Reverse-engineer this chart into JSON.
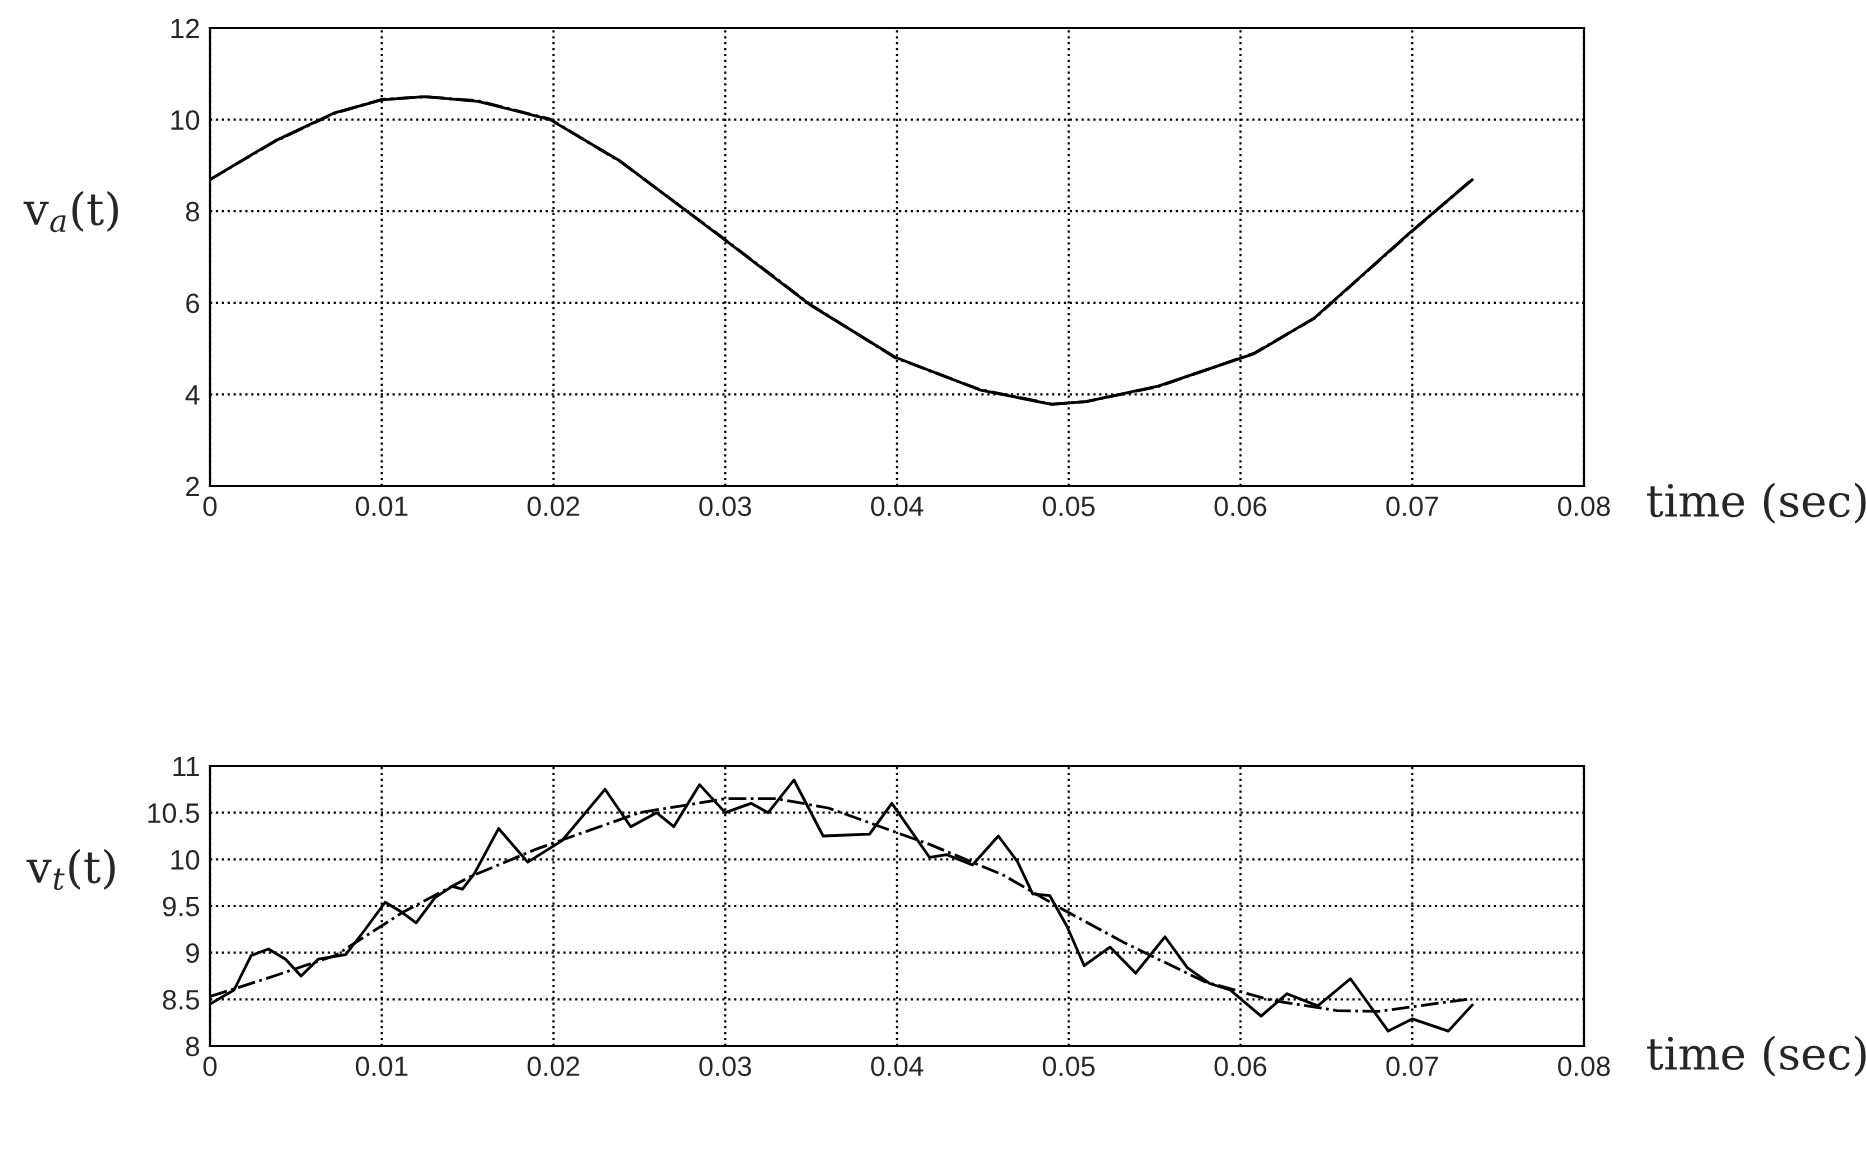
{
  "chart_data": [
    {
      "type": "line",
      "xlabel": "time (sec)",
      "ylabel": "v$_{a}$(t)",
      "xlim": [
        0,
        0.08
      ],
      "ylim": [
        2,
        12
      ],
      "xticks": [
        0,
        0.01,
        0.02,
        0.03,
        0.04,
        0.05,
        0.06,
        0.07,
        0.08
      ],
      "yticks": [
        2,
        4,
        6,
        8,
        10,
        12
      ],
      "grid": true,
      "series": [
        {
          "color": "#000000",
          "line_style": "solid",
          "x": [
            0,
            0.00376,
            0.0072,
            0.01,
            0.0125,
            0.0156,
            0.0198,
            0.0239,
            0.0295,
            0.035,
            0.0399,
            0.0448,
            0.049,
            0.051,
            0.0552,
            0.0608,
            0.0643,
            0.0698,
            0.0735
          ],
          "values": [
            8.69,
            9.53,
            10.14,
            10.43,
            10.5,
            10.4,
            10.0,
            9.09,
            7.51,
            5.94,
            4.81,
            4.1,
            3.78,
            3.84,
            4.18,
            4.89,
            5.67,
            7.51,
            8.69
          ]
        },
        {
          "color": "#000000",
          "line_style": "dashdot",
          "x": [
            0,
            0.00376,
            0.0072,
            0.01,
            0.0125,
            0.0156,
            0.0198,
            0.0239,
            0.0295,
            0.035,
            0.0399,
            0.0448,
            0.049,
            0.051,
            0.0552,
            0.0608,
            0.0643,
            0.0698,
            0.0735
          ],
          "values": [
            8.69,
            9.52,
            10.13,
            10.44,
            10.5,
            10.41,
            10.01,
            9.08,
            7.52,
            5.95,
            4.8,
            4.11,
            3.79,
            3.84,
            4.17,
            4.9,
            5.66,
            7.5,
            8.7
          ]
        }
      ]
    },
    {
      "type": "line",
      "xlabel": "time (sec)",
      "ylabel": "v$_{t}$(t)",
      "xlim": [
        0,
        0.08
      ],
      "ylim": [
        8,
        11
      ],
      "xticks": [
        0,
        0.01,
        0.02,
        0.03,
        0.04,
        0.05,
        0.06,
        0.07,
        0.08
      ],
      "yticks": [
        8,
        8.5,
        9,
        9.5,
        10,
        10.5,
        11
      ],
      "grid": true,
      "series": [
        {
          "color": "#000000",
          "line_style": "solid",
          "x": [
            0,
            0.0014,
            0.0024,
            0.0034,
            0.0044,
            0.0053,
            0.0063,
            0.0079,
            0.009,
            0.0102,
            0.0112,
            0.012,
            0.0131,
            0.0141,
            0.0147,
            0.0154,
            0.0168,
            0.0185,
            0.0205,
            0.023,
            0.0245,
            0.026,
            0.027,
            0.0285,
            0.03,
            0.0315,
            0.0325,
            0.034,
            0.0357,
            0.0384,
            0.0397,
            0.0419,
            0.0429,
            0.0444,
            0.0459,
            0.047,
            0.0479,
            0.0489,
            0.0499,
            0.0509,
            0.0524,
            0.0539,
            0.0556,
            0.0569,
            0.0582,
            0.0594,
            0.0612,
            0.0627,
            0.0645,
            0.0664,
            0.0686,
            0.07,
            0.0721,
            0.0735
          ],
          "values": [
            8.45,
            8.6,
            8.97,
            9.04,
            8.93,
            8.75,
            8.93,
            8.98,
            9.24,
            9.54,
            9.43,
            9.32,
            9.59,
            9.71,
            9.68,
            9.85,
            10.33,
            9.97,
            10.2,
            10.75,
            10.35,
            10.5,
            10.35,
            10.8,
            10.5,
            10.6,
            10.5,
            10.85,
            10.25,
            10.27,
            10.6,
            10.02,
            10.05,
            9.94,
            10.25,
            9.98,
            9.63,
            9.61,
            9.28,
            8.86,
            9.06,
            8.78,
            9.17,
            8.84,
            8.67,
            8.6,
            8.32,
            8.56,
            8.43,
            8.72,
            8.16,
            8.29,
            8.16,
            8.44
          ]
        },
        {
          "color": "#000000",
          "line_style": "dashdot",
          "x": [
            0,
            0.0034,
            0.0073,
            0.0112,
            0.0151,
            0.019,
            0.025,
            0.03,
            0.033,
            0.036,
            0.0419,
            0.0462,
            0.0493,
            0.0532,
            0.0579,
            0.0618,
            0.0656,
            0.068,
            0.0732
          ],
          "values": [
            8.53,
            8.73,
            8.97,
            9.43,
            9.81,
            10.11,
            10.5,
            10.65,
            10.65,
            10.55,
            10.16,
            9.83,
            9.5,
            9.11,
            8.69,
            8.49,
            8.38,
            8.37,
            8.5
          ]
        }
      ]
    }
  ]
}
